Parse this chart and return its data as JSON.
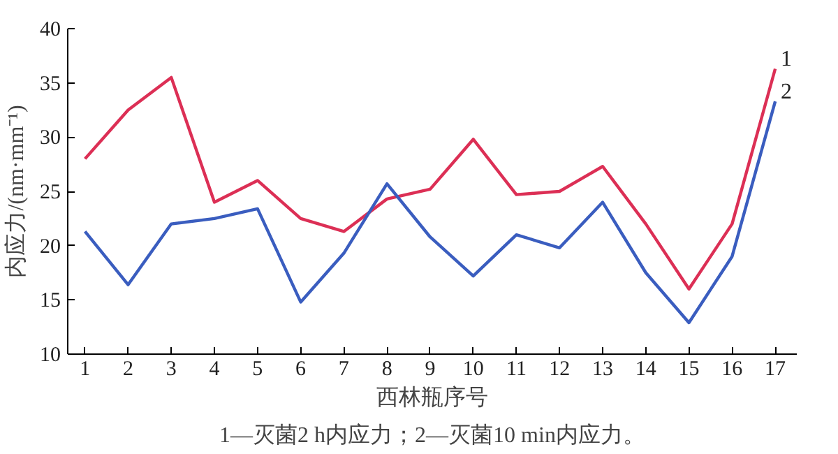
{
  "chart_data": {
    "type": "line",
    "xlabel": "西林瓶序号",
    "ylabel": "内应力/(nm·mm⁻¹)",
    "x": [
      1,
      2,
      3,
      4,
      5,
      6,
      7,
      8,
      9,
      10,
      11,
      12,
      13,
      14,
      15,
      16,
      17
    ],
    "xlim": [
      0.6,
      17.5
    ],
    "xticks": [
      1,
      2,
      3,
      4,
      5,
      6,
      7,
      8,
      9,
      10,
      11,
      12,
      13,
      14,
      15,
      16,
      17
    ],
    "ylim": [
      10,
      40
    ],
    "yticks": [
      10,
      15,
      20,
      25,
      30,
      35,
      40
    ],
    "grid": false,
    "marker": "none",
    "line_style": "solid",
    "series": [
      {
        "name": "1",
        "color": "#dc2f55",
        "values": [
          28,
          32.5,
          35.5,
          24,
          26,
          22.5,
          21.3,
          24.3,
          25.2,
          29.8,
          24.7,
          25,
          27.3,
          22,
          16,
          22,
          36.3
        ]
      },
      {
        "name": "2",
        "color": "#3a5dbf",
        "values": [
          21.3,
          16.4,
          22,
          22.5,
          23.4,
          14.8,
          19.3,
          25.7,
          20.8,
          17.2,
          21,
          19.8,
          24,
          17.5,
          12.9,
          19,
          33.3
        ]
      }
    ],
    "annotations": [
      "1—灭菌2 h内应力；2—灭菌10 min内应力。"
    ]
  }
}
